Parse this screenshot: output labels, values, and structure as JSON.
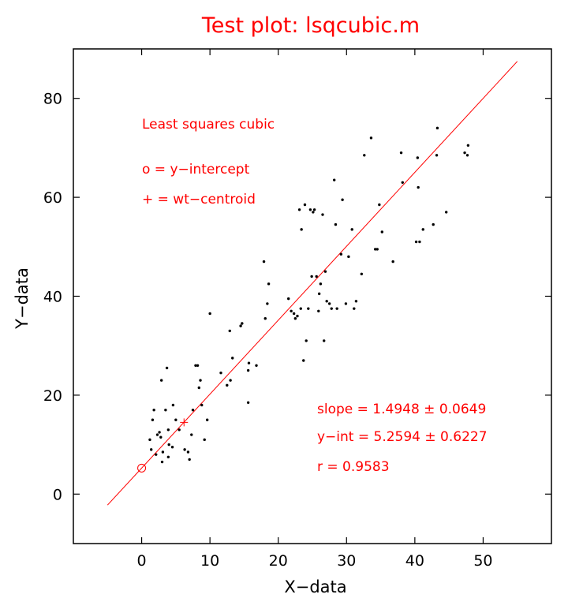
{
  "chart_data": {
    "type": "scatter",
    "title": "Test plot: lsqcubic.m",
    "xlabel": "X−data",
    "ylabel": "Y−data",
    "xlim": [
      -10,
      60
    ],
    "ylim": [
      -10,
      90
    ],
    "xticks": [
      0,
      10,
      20,
      30,
      40,
      50
    ],
    "yticks": [
      0,
      20,
      40,
      60,
      80
    ],
    "grid": false,
    "colors": {
      "points": "#000000",
      "fit": "#ff0000",
      "text": "#ff0000"
    },
    "legend": {
      "heading": "Least squares cubic",
      "intercept_label": "o = y−intercept",
      "centroid_label": "+ = wt−centroid"
    },
    "stats": {
      "slope": "slope = 1.4948 ± 0.0649",
      "intercept": "y−int = 5.2594 ± 0.6227",
      "r": "r = 0.9583"
    },
    "fit_line": {
      "slope": 1.4948,
      "intercept": 5.2594,
      "x_range": [
        -5,
        55
      ]
    },
    "y_intercept_marker": [
      0,
      5.2594
    ],
    "centroid_marker": [
      6.2,
      14.5
    ],
    "points": [
      [
        1.2,
        11.0
      ],
      [
        1.4,
        9.0
      ],
      [
        1.6,
        15.0
      ],
      [
        1.8,
        17.0
      ],
      [
        2.1,
        8.0
      ],
      [
        2.3,
        12.0
      ],
      [
        2.6,
        12.5
      ],
      [
        2.8,
        11.5
      ],
      [
        2.9,
        23.0
      ],
      [
        3.0,
        6.5
      ],
      [
        3.1,
        8.5
      ],
      [
        3.5,
        17.0
      ],
      [
        3.7,
        25.5
      ],
      [
        3.9,
        13.0
      ],
      [
        3.9,
        7.5
      ],
      [
        4.0,
        10.0
      ],
      [
        4.5,
        9.5
      ],
      [
        4.6,
        18.0
      ],
      [
        5.0,
        15.0
      ],
      [
        5.5,
        13.0
      ],
      [
        6.3,
        9.0
      ],
      [
        6.8,
        8.5
      ],
      [
        7.0,
        7.0
      ],
      [
        7.3,
        12.0
      ],
      [
        7.5,
        17.0
      ],
      [
        7.9,
        26.0
      ],
      [
        8.2,
        26.0
      ],
      [
        8.4,
        21.5
      ],
      [
        8.6,
        23.0
      ],
      [
        8.8,
        18.0
      ],
      [
        9.2,
        11.0
      ],
      [
        9.6,
        15.0
      ],
      [
        10.0,
        36.5
      ],
      [
        11.6,
        24.5
      ],
      [
        12.5,
        22.0
      ],
      [
        12.9,
        33.0
      ],
      [
        13.0,
        23.0
      ],
      [
        13.3,
        27.5
      ],
      [
        14.5,
        34.0
      ],
      [
        14.7,
        34.5
      ],
      [
        15.6,
        18.5
      ],
      [
        15.6,
        25.0
      ],
      [
        15.7,
        26.5
      ],
      [
        16.8,
        26.0
      ],
      [
        17.9,
        47.0
      ],
      [
        18.1,
        35.5
      ],
      [
        18.4,
        38.5
      ],
      [
        18.6,
        42.5
      ],
      [
        21.5,
        39.5
      ],
      [
        21.9,
        37.0
      ],
      [
        22.3,
        36.5
      ],
      [
        22.5,
        35.5
      ],
      [
        22.8,
        36.0
      ],
      [
        23.1,
        57.5
      ],
      [
        23.3,
        37.5
      ],
      [
        23.4,
        53.5
      ],
      [
        23.7,
        27.0
      ],
      [
        23.9,
        58.5
      ],
      [
        24.1,
        31.0
      ],
      [
        24.4,
        37.5
      ],
      [
        24.7,
        57.5
      ],
      [
        24.9,
        44.0
      ],
      [
        25.1,
        57.0
      ],
      [
        25.3,
        57.5
      ],
      [
        25.6,
        44.0
      ],
      [
        25.9,
        37.0
      ],
      [
        26.0,
        40.5
      ],
      [
        26.2,
        42.5
      ],
      [
        26.5,
        56.5
      ],
      [
        26.7,
        31.0
      ],
      [
        26.9,
        45.0
      ],
      [
        27.1,
        39.0
      ],
      [
        27.5,
        38.5
      ],
      [
        27.8,
        37.5
      ],
      [
        28.2,
        63.5
      ],
      [
        28.4,
        54.5
      ],
      [
        28.6,
        37.5
      ],
      [
        29.2,
        48.5
      ],
      [
        29.4,
        59.5
      ],
      [
        29.9,
        38.5
      ],
      [
        30.3,
        48.0
      ],
      [
        30.8,
        53.5
      ],
      [
        31.1,
        37.5
      ],
      [
        31.4,
        39.0
      ],
      [
        32.2,
        44.5
      ],
      [
        32.6,
        68.5
      ],
      [
        33.6,
        72.0
      ],
      [
        34.2,
        49.5
      ],
      [
        34.5,
        49.5
      ],
      [
        34.8,
        58.5
      ],
      [
        35.2,
        53.0
      ],
      [
        36.8,
        47.0
      ],
      [
        38.0,
        69.0
      ],
      [
        38.2,
        63.0
      ],
      [
        40.2,
        51.0
      ],
      [
        40.4,
        68.0
      ],
      [
        40.5,
        62.0
      ],
      [
        40.7,
        51.0
      ],
      [
        41.2,
        53.5
      ],
      [
        42.7,
        54.5
      ],
      [
        43.2,
        68.5
      ],
      [
        43.3,
        74.0
      ],
      [
        44.6,
        57.0
      ],
      [
        47.3,
        69.0
      ],
      [
        47.7,
        68.5
      ],
      [
        47.8,
        70.5
      ]
    ]
  }
}
